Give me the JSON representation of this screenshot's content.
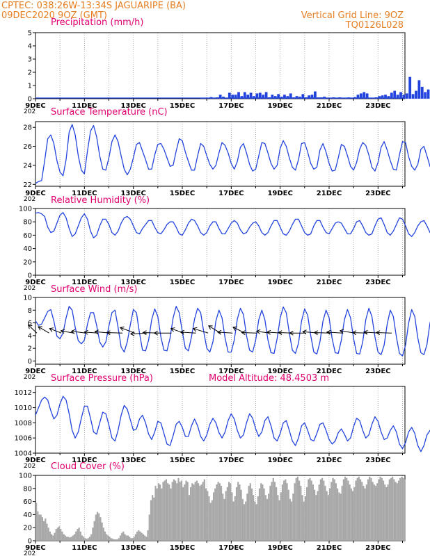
{
  "header": {
    "line1": "CPTEC:   038:26W-13:34S   JAGUARIPE (BA)",
    "line2": "09DEC2020 9OZ (GMT)",
    "vgrid": "Vertical Grid Line: 9OZ",
    "code": "TQ0126L028"
  },
  "x_axis": {
    "start_day": 9,
    "end_day": 24.1,
    "labels": [
      "9DEC",
      "11DEC",
      "13DEC",
      "15DEC",
      "17DEC",
      "19DEC",
      "21DEC",
      "23DEC"
    ],
    "label_days": [
      9,
      11,
      13,
      15,
      17,
      19,
      21,
      23
    ],
    "year_stub": "202"
  },
  "colors": {
    "line": "#2244dd",
    "bar": "#2244dd",
    "cloud": "#a8a8a8",
    "header": "#e67e22",
    "title": "#e0006f",
    "grid": "#9a9a9a"
  },
  "chart_data": [
    {
      "id": "precip",
      "type": "bar",
      "title": "Precipitation (mm/h)",
      "ylim": [
        0,
        5
      ],
      "yticks": [
        0,
        1,
        2,
        3,
        4,
        5
      ],
      "x_start": 9,
      "x_step": 0.125,
      "values": [
        0,
        0,
        0,
        0,
        0,
        0,
        0,
        0,
        0,
        0,
        0,
        0,
        0,
        0,
        0,
        0,
        0,
        0,
        0,
        0,
        0,
        0,
        0,
        0,
        0,
        0,
        0,
        0,
        0,
        0,
        0,
        0,
        0,
        0,
        0,
        0,
        0,
        0,
        0,
        0,
        0,
        0,
        0,
        0,
        0,
        0,
        0,
        0,
        0,
        0,
        0,
        0,
        0,
        0,
        0.04,
        0.05,
        0.06,
        0.12,
        0.05,
        0.1,
        0.3,
        0.15,
        0.08,
        0.45,
        0.3,
        0.3,
        0.5,
        0.2,
        0.5,
        0.3,
        0.45,
        0.2,
        0.4,
        0.45,
        0.3,
        0.5,
        0.1,
        0.3,
        0.2,
        0.35,
        0.15,
        0.3,
        0.2,
        0.4,
        0.1,
        0.2,
        0.15,
        0.35,
        0.1,
        0.25,
        0.3,
        0.55,
        0.1,
        0.1,
        0.15,
        0.05,
        0.05,
        0.1,
        0.08,
        0.1,
        0.05,
        0.06,
        0.1,
        0.05,
        0.12,
        0.3,
        0.4,
        0.5,
        0.4,
        0.05,
        0.05,
        0.1,
        0.2,
        0.25,
        0.3,
        0.2,
        0.45,
        0.6,
        0.3,
        0.5,
        0.3,
        0.4,
        1.65,
        0.35,
        0.6,
        1.4,
        0.9,
        0.5,
        0.7,
        0.5,
        0.4,
        0.5,
        0.3,
        0.4,
        0.3,
        0.05,
        0.05,
        0.15,
        0.3,
        0.5,
        0.3,
        0.4,
        0.45,
        0.35,
        0.3,
        0.5,
        0.4,
        0.3,
        0.35,
        0.2,
        0.3,
        0.35,
        0.5,
        0.3,
        1.1,
        0.4,
        0.3,
        0.5,
        0.5,
        0.5,
        0.5
      ]
    },
    {
      "id": "temp",
      "type": "line",
      "title": "Surface Temperature (nC)",
      "ylim": [
        21.8,
        28.6
      ],
      "yticks": [
        22,
        24,
        26,
        28
      ],
      "x_start": 9,
      "x_step": 0.125,
      "values": [
        22.1,
        22.3,
        22.4,
        24.5,
        26.8,
        27.2,
        26.3,
        24.5,
        23.3,
        22.9,
        24.6,
        27.5,
        28.3,
        27.2,
        25.0,
        23.5,
        23.1,
        25.5,
        27.6,
        28.2,
        27.0,
        25.0,
        23.6,
        23.5,
        24.8,
        26.5,
        27.2,
        26.5,
        25.0,
        23.6,
        23.0,
        23.6,
        24.8,
        26.2,
        26.4,
        25.5,
        24.6,
        23.6,
        23.6,
        25.1,
        26.2,
        26.3,
        25.7,
        24.8,
        23.9,
        24.0,
        25.5,
        26.8,
        26.6,
        25.4,
        24.4,
        23.5,
        23.5,
        25.0,
        26.3,
        26.0,
        25.0,
        24.1,
        23.6,
        24.0,
        25.3,
        26.4,
        26.1,
        25.3,
        24.2,
        23.6,
        24.4,
        25.9,
        26.3,
        25.3,
        24.1,
        23.4,
        23.6,
        25.0,
        26.4,
        26.3,
        25.3,
        24.2,
        23.6,
        24.0,
        25.8,
        26.6,
        26.0,
        24.8,
        23.8,
        23.5,
        24.6,
        26.3,
        26.4,
        25.4,
        24.2,
        23.6,
        23.8,
        25.6,
        26.3,
        25.4,
        24.2,
        23.4,
        23.5,
        24.8,
        26.2,
        26.0,
        25.0,
        23.9,
        23.5,
        24.3,
        25.7,
        26.4,
        26.1,
        25.1,
        23.8,
        23.4,
        24.3,
        25.9,
        26.5,
        25.6,
        24.5,
        23.6,
        23.5,
        25.1,
        26.5,
        26.4,
        24.9,
        23.9,
        23.5,
        24.1,
        25.7,
        26.0,
        25.0,
        23.9,
        23.4,
        23.7,
        25.2,
        26.5,
        26.0,
        24.6,
        23.4
      ]
    },
    {
      "id": "rh",
      "type": "line",
      "title": "Relative Humidity (%)",
      "ylim": [
        0,
        100
      ],
      "yticks": [
        0,
        20,
        40,
        60,
        80,
        100
      ],
      "x_start": 9,
      "x_step": 0.125,
      "values": [
        93,
        94,
        92,
        88,
        72,
        64,
        66,
        78,
        90,
        94,
        86,
        70,
        58,
        62,
        74,
        86,
        92,
        84,
        66,
        56,
        60,
        74,
        84,
        84,
        76,
        64,
        60,
        66,
        78,
        86,
        88,
        84,
        74,
        64,
        62,
        70,
        76,
        82,
        82,
        72,
        64,
        62,
        68,
        76,
        80,
        80,
        72,
        62,
        60,
        68,
        78,
        84,
        82,
        74,
        64,
        60,
        64,
        74,
        80,
        80,
        70,
        62,
        62,
        70,
        78,
        82,
        78,
        68,
        62,
        64,
        72,
        78,
        80,
        74,
        64,
        60,
        64,
        74,
        82,
        82,
        72,
        62,
        60,
        66,
        76,
        84,
        84,
        74,
        64,
        60,
        62,
        74,
        82,
        82,
        72,
        64,
        62,
        70,
        78,
        80,
        78,
        70,
        62,
        62,
        70,
        80,
        82,
        74,
        64,
        60,
        62,
        74,
        84,
        86,
        76,
        64,
        60,
        66,
        76,
        86,
        84,
        74,
        62,
        58,
        64,
        74,
        80,
        82,
        74,
        64,
        62,
        66,
        78,
        84,
        80,
        70,
        62,
        64,
        76,
        80
      ]
    },
    {
      "id": "wind",
      "type": "line",
      "title": "Surface Wind (m/s)",
      "ylim": [
        -0.5,
        10
      ],
      "yticks": [
        0,
        2,
        4,
        6,
        8,
        10
      ],
      "x_start": 9,
      "x_step": 0.125,
      "values": [
        6.3,
        5.6,
        5.8,
        6.8,
        7.8,
        8.1,
        6.3,
        3.9,
        3.5,
        4.4,
        6.8,
        8.6,
        8.0,
        5.3,
        3.2,
        2.7,
        3.3,
        5.8,
        7.6,
        7.6,
        5.6,
        3.0,
        2.2,
        3.0,
        5.5,
        7.6,
        8.0,
        5.3,
        2.2,
        1.4,
        3.0,
        5.7,
        8.1,
        7.6,
        4.4,
        1.7,
        1.6,
        3.3,
        6.5,
        8.2,
        7.0,
        3.8,
        1.7,
        1.6,
        3.6,
        6.8,
        8.6,
        7.6,
        4.6,
        2.0,
        1.6,
        3.8,
        6.6,
        8.3,
        7.6,
        4.6,
        2.0,
        1.4,
        3.0,
        6.3,
        8.0,
        6.8,
        3.6,
        1.4,
        1.4,
        3.3,
        6.6,
        8.3,
        7.3,
        4.0,
        1.7,
        1.4,
        3.3,
        6.5,
        8.0,
        6.5,
        3.3,
        1.3,
        1.2,
        3.5,
        6.8,
        8.5,
        7.6,
        4.4,
        1.7,
        1.2,
        2.8,
        6.3,
        8.2,
        7.2,
        4.0,
        1.4,
        1.1,
        3.0,
        6.3,
        8.0,
        6.8,
        3.5,
        1.3,
        1.2,
        3.3,
        6.5,
        8.1,
        6.8,
        3.5,
        1.2,
        1.1,
        3.0,
        6.5,
        8.3,
        7.0,
        3.8,
        1.4,
        1.0,
        2.5,
        5.8,
        8.0,
        7.0,
        3.8,
        1.2,
        0.8,
        2.5,
        6.0,
        8.1,
        7.0,
        3.6,
        1.3,
        1.0,
        2.6,
        6.0,
        7.9,
        6.0,
        2.7,
        1.0,
        1.3,
        3.5,
        4.2
      ]
    },
    {
      "id": "pressure",
      "type": "line",
      "title": "Surface Pressure (hPa)",
      "subtitle": "Model Altitude: 48.4503 m",
      "ylim": [
        1004,
        1012.8
      ],
      "yticks": [
        1004,
        1006,
        1008,
        1010,
        1012
      ],
      "x_start": 9,
      "x_step": 0.125,
      "values": [
        1009.0,
        1010.0,
        1011.0,
        1011.4,
        1011.0,
        1009.6,
        1008.5,
        1009.0,
        1010.5,
        1011.5,
        1011.0,
        1009.2,
        1007.0,
        1006.0,
        1006.8,
        1008.6,
        1010.2,
        1010.2,
        1008.6,
        1006.8,
        1006.5,
        1008.0,
        1009.4,
        1009.2,
        1007.7,
        1006.0,
        1005.6,
        1007.0,
        1009.0,
        1010.3,
        1009.8,
        1008.4,
        1007.0,
        1007.2,
        1008.5,
        1009.0,
        1008.0,
        1006.5,
        1005.8,
        1006.8,
        1008.2,
        1008.0,
        1006.6,
        1005.2,
        1005.0,
        1006.3,
        1007.8,
        1008.2,
        1007.4,
        1006.2,
        1006.2,
        1007.6,
        1008.5,
        1007.6,
        1006.2,
        1005.6,
        1006.4,
        1007.8,
        1008.6,
        1008.0,
        1006.7,
        1006.0,
        1006.8,
        1008.3,
        1009.2,
        1008.5,
        1007.0,
        1006.0,
        1006.4,
        1008.0,
        1009.2,
        1008.6,
        1007.2,
        1006.2,
        1006.8,
        1008.3,
        1008.8,
        1007.6,
        1006.0,
        1005.6,
        1006.6,
        1008.0,
        1008.3,
        1007.0,
        1005.6,
        1005.0,
        1006.0,
        1007.6,
        1008.0,
        1007.0,
        1005.8,
        1005.6,
        1006.6,
        1007.8,
        1008.0,
        1007.0,
        1005.8,
        1005.2,
        1005.6,
        1006.7,
        1007.2,
        1006.5,
        1005.6,
        1006.0,
        1007.5,
        1008.6,
        1008.3,
        1007.0,
        1006.0,
        1006.4,
        1007.8,
        1008.8,
        1008.2,
        1006.8,
        1005.8,
        1006.0,
        1007.0,
        1007.6,
        1006.8,
        1005.2,
        1004.6,
        1005.4,
        1006.8,
        1007.4,
        1006.6,
        1005.0,
        1004.2,
        1005.0,
        1006.4,
        1007.0,
        1006.0,
        1004.6,
        1003.8,
        1004.2,
        1005.4,
        1006.0
      ]
    },
    {
      "id": "cloud",
      "type": "bar",
      "title": "Cloud Cover (%)",
      "ylim": [
        0,
        100
      ],
      "yticks": [
        0,
        20,
        40,
        60,
        80,
        100
      ],
      "x_start": 9,
      "x_step": 0.0625,
      "values": [
        58,
        45,
        40,
        40,
        36,
        30,
        34,
        26,
        20,
        14,
        10,
        8,
        12,
        18,
        20,
        22,
        18,
        14,
        10,
        8,
        6,
        6,
        5,
        6,
        8,
        10,
        14,
        18,
        20,
        14,
        8,
        6,
        4,
        3,
        4,
        6,
        10,
        20,
        30,
        40,
        44,
        42,
        36,
        28,
        20,
        14,
        10,
        8,
        6,
        4,
        3,
        2,
        2,
        2,
        4,
        8,
        12,
        14,
        10,
        8,
        8,
        6,
        4,
        4,
        6,
        10,
        14,
        16,
        14,
        12,
        10,
        8,
        6,
        16,
        40,
        62,
        70,
        66,
        84,
        80,
        88,
        86,
        80,
        90,
        92,
        94,
        88,
        86,
        80,
        90,
        94,
        92,
        88,
        96,
        90,
        92,
        82,
        86,
        92,
        90,
        70,
        82,
        88,
        86,
        90,
        92,
        88,
        84,
        86,
        90,
        94,
        80,
        76,
        68,
        58,
        62,
        74,
        80,
        86,
        90,
        88,
        84,
        72,
        64,
        76,
        82,
        90,
        88,
        74,
        60,
        68,
        82,
        90,
        86,
        78,
        64,
        56,
        60,
        72,
        84,
        88,
        80,
        70,
        60,
        56,
        68,
        80,
        88,
        86,
        80,
        70,
        64,
        72,
        84,
        90,
        96,
        90,
        82,
        70,
        62,
        74,
        86,
        92,
        94,
        88,
        78,
        64,
        60,
        72,
        88,
        96,
        98,
        92,
        84,
        70,
        60,
        68,
        82,
        94,
        96,
        92,
        86,
        78,
        70,
        76,
        86,
        94,
        96,
        92,
        84,
        76,
        70,
        80,
        90,
        96,
        94,
        88,
        80,
        74,
        72,
        84,
        94,
        98,
        96,
        92,
        86,
        80,
        76,
        82,
        92,
        96,
        98,
        94,
        90,
        84,
        80,
        86,
        94,
        98,
        96,
        90,
        86,
        84,
        88,
        94,
        98,
        96,
        92,
        86,
        82,
        86,
        94,
        96,
        98,
        94,
        90,
        88,
        92,
        96,
        98,
        96,
        94
      ]
    }
  ],
  "wind_vectors": {
    "x_start": 9,
    "x_step": 0.5,
    "y_row": 4.4,
    "u": [
      1.9,
      2.4,
      2.6,
      2.8,
      3.2,
      3.0,
      3.4,
      3.5,
      3.2,
      3.6,
      3.6,
      3.8,
      2.8,
      3.4,
      3.3,
      2.6,
      3.3,
      2.6,
      3.4,
      2.8,
      3.2,
      3.4,
      3.6,
      3.4,
      3.6,
      3.5,
      3.3,
      3.2,
      3.4,
      3.4
    ],
    "v": [
      1.8,
      1.4,
      1.0,
      0.5,
      0.4,
      0.2,
      0.3,
      0.1,
      1.2,
      -0.2,
      0.1,
      0.0,
      1.0,
      0.2,
      1.0,
      1.6,
      0.2,
      1.3,
      0.1,
      0.4,
      0.2,
      0.1,
      0.0,
      0.3,
      0.1,
      0.2,
      0.5,
      0.1,
      0.2,
      0.1
    ]
  }
}
